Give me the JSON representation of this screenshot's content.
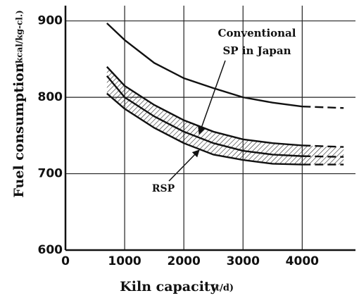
{
  "chart_data": {
    "type": "line",
    "x": [
      700,
      1000,
      1500,
      2000,
      2500,
      3000,
      3500,
      4000,
      4700
    ],
    "series": [
      {
        "values": [
          897,
          875,
          845,
          825,
          812,
          800,
          793,
          788,
          786
        ],
        "color": "#111111"
      },
      {
        "values": [
          840,
          815,
          790,
          770,
          755,
          745,
          740,
          737,
          735
        ],
        "color": "#111111"
      },
      {
        "values": [
          828,
          800,
          775,
          755,
          740,
          730,
          725,
          723,
          722
        ],
        "color": "#111111"
      },
      {
        "values": [
          805,
          785,
          760,
          740,
          725,
          718,
          713,
          712,
          712
        ],
        "color": "#111111"
      }
    ],
    "dashed_after_x": 4000,
    "hatch_between": [
      1,
      3
    ],
    "xlim": [
      0,
      4900
    ],
    "xticks": [
      0,
      1000,
      2000,
      3000,
      4000
    ],
    "ylim": [
      600,
      920
    ],
    "yticks": [
      600,
      700,
      800,
      900
    ],
    "grid": true,
    "xlabel": "Kiln capacity",
    "xlabel_unit": "(t/d)",
    "ylabel": "Fuel consumption",
    "ylabel_unit": "(kcal/kg-cl.)",
    "annotations": [
      "Conventional",
      "SP in Japan",
      "RSP"
    ]
  }
}
